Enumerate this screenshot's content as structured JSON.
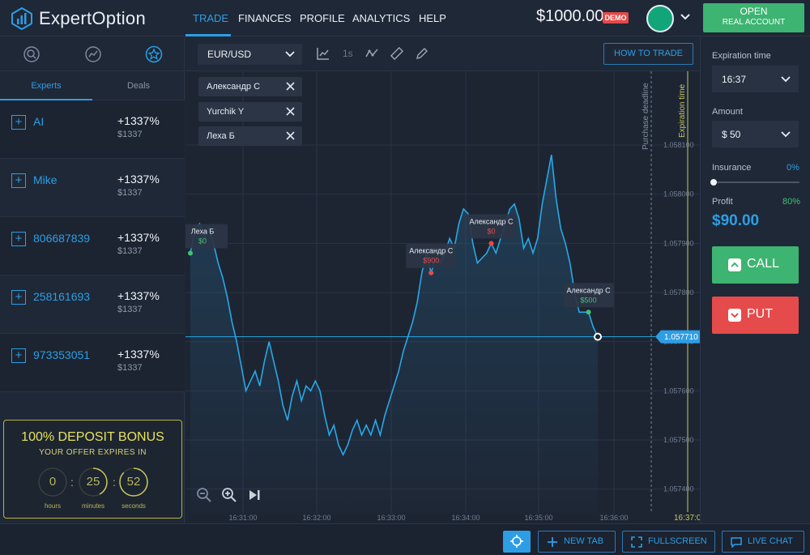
{
  "header": {
    "logo_text": "ExpertOption",
    "nav": [
      {
        "label": "TRADE",
        "active": true
      },
      {
        "label": "FINANCES",
        "active": false
      },
      {
        "label": "PROFILE",
        "active": false
      },
      {
        "label": "ANALYTICS",
        "active": false
      },
      {
        "label": "HELP",
        "active": false
      }
    ],
    "balance": "$1000.00",
    "demo_badge": "DEMO",
    "open_account_line1": "OPEN",
    "open_account_line2": "REAL ACCOUNT"
  },
  "left_panel": {
    "icons": [
      "search-analysis-icon",
      "clock-chart-icon",
      "star-icon"
    ],
    "tabs": [
      {
        "label": "Experts",
        "active": true
      },
      {
        "label": "Deals",
        "active": false
      }
    ],
    "experts": [
      {
        "name": "AI",
        "percent": "+1337%",
        "amount": "$1337"
      },
      {
        "name": "Mike",
        "percent": "+1337%",
        "amount": "$1337"
      },
      {
        "name": "806687839",
        "percent": "+1337%",
        "amount": "$1337"
      },
      {
        "name": "258161693",
        "percent": "+1337%",
        "amount": "$1337"
      },
      {
        "name": "973353051",
        "percent": "+1337%",
        "amount": "$1337"
      }
    ],
    "bonus": {
      "title": "100% DEPOSIT BONUS",
      "subtitle": "YOUR OFFER EXPIRES IN",
      "hours": "0",
      "minutes": "25",
      "seconds": "52",
      "hours_label": "hours",
      "minutes_label": "minutes",
      "seconds_label": "seconds",
      "minutes_fraction": 0.42,
      "seconds_fraction": 0.87
    }
  },
  "toolbar": {
    "pair": "EUR/USD",
    "timeframe": "1s",
    "how_to_trade": "HOW TO TRADE"
  },
  "traders": [
    "Александр С",
    "Yurchik Y",
    "Леха Б"
  ],
  "chart_data": {
    "type": "line",
    "pair": "EUR/USD",
    "ylim": [
      1.05735,
      1.05825
    ],
    "y_ticks": [
      "1.058100",
      "1.058000",
      "1.057900",
      "1.057800",
      "1.057700",
      "1.057600",
      "1.057500",
      "1.057400"
    ],
    "x_ticks": [
      "16:31:00",
      "16:32:00",
      "16:33:00",
      "16:34:00",
      "16:35:00",
      "16:36:00"
    ],
    "current_time_label": "16:37:0",
    "current_price": "1.057710",
    "purchase_deadline_label": "Purchase deadline",
    "expiration_time_label": "Expiration time",
    "series": [
      {
        "values": [
          1.05788,
          1.05793,
          1.05794,
          1.05791,
          1.05793,
          1.0579,
          1.05786,
          1.05783,
          1.05779,
          1.05774,
          1.0577,
          1.05765,
          1.0576,
          1.05762,
          1.05764,
          1.05761,
          1.05766,
          1.0577,
          1.05766,
          1.05762,
          1.05757,
          1.05754,
          1.05759,
          1.05762,
          1.05758,
          1.05761,
          1.0576,
          1.05762,
          1.0576,
          1.05755,
          1.05751,
          1.05753,
          1.05749,
          1.05747,
          1.05749,
          1.05752,
          1.05754,
          1.05751,
          1.05753,
          1.05751,
          1.05754,
          1.05751,
          1.05755,
          1.05758,
          1.05761,
          1.05764,
          1.05768,
          1.05771,
          1.05774,
          1.05778,
          1.05784,
          1.05788,
          1.05784,
          1.05787,
          1.05786,
          1.05788,
          1.05791,
          1.05789,
          1.05794,
          1.05797,
          1.05796,
          1.0579,
          1.05786,
          1.05787,
          1.05788,
          1.0579,
          1.05788,
          1.05791,
          1.05794,
          1.05797,
          1.05798,
          1.05795,
          1.05789,
          1.05791,
          1.05788,
          1.05791,
          1.05798,
          1.05803,
          1.05808,
          1.05799,
          1.05793,
          1.0579,
          1.05786,
          1.0578,
          1.05776,
          1.05776,
          1.05776,
          1.05773,
          1.05771
        ]
      }
    ],
    "trade_markers": [
      {
        "name": "Леха Б",
        "amount": "$0",
        "index": 0,
        "color": "#3fc277"
      },
      {
        "name": "Александр С",
        "amount": "$900",
        "index": 52,
        "color": "#e54b4b"
      },
      {
        "name": "Александр С",
        "amount": "$0",
        "index": 65,
        "color": "#e54b4b"
      },
      {
        "name": "Александр С",
        "amount": "$500",
        "index": 86,
        "color": "#3fc277"
      }
    ],
    "colors": {
      "line": "#29a8e6",
      "grid": "#2a3445",
      "marker_green": "#3fc277",
      "marker_red": "#e54b4b",
      "deadline": "#7a8595",
      "expiration": "#c9c65a"
    }
  },
  "right_panel": {
    "expiration_label": "Expiration time",
    "expiration_value": "16:37",
    "amount_label": "Amount",
    "amount_value": "$ 50",
    "insurance_label": "Insurance",
    "insurance_value": "0%",
    "profit_label": "Profit",
    "profit_percent": "80%",
    "profit_value": "$90.00",
    "call_label": "CALL",
    "put_label": "PUT"
  },
  "footer": {
    "new_tab": "NEW TAB",
    "fullscreen": "FULLSCREEN",
    "live_chat": "LIVE CHAT"
  }
}
